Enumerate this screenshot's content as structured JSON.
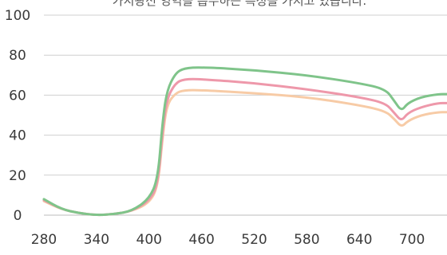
{
  "caption": "가시광선 영역을 흡수하는 특성을 가지고 있습니다.",
  "chart_data": {
    "type": "line",
    "title": "",
    "xlabel": "",
    "ylabel": "",
    "xlim": [
      280,
      740
    ],
    "ylim": [
      0,
      100
    ],
    "x_ticks": [
      280,
      340,
      400,
      460,
      520,
      580,
      640,
      700
    ],
    "y_ticks": [
      0,
      20,
      40,
      60,
      80,
      100
    ],
    "grid": "horizontal",
    "legend": "none",
    "series": [
      {
        "color": "#7fc48a",
        "points": [
          [
            280,
            8
          ],
          [
            300,
            3
          ],
          [
            320,
            1
          ],
          [
            340,
            0
          ],
          [
            360,
            0.5
          ],
          [
            380,
            2
          ],
          [
            400,
            8
          ],
          [
            410,
            18
          ],
          [
            415,
            45
          ],
          [
            420,
            62
          ],
          [
            430,
            71
          ],
          [
            440,
            73.5
          ],
          [
            460,
            74
          ],
          [
            520,
            72.5
          ],
          [
            580,
            70
          ],
          [
            640,
            66
          ],
          [
            670,
            63
          ],
          [
            680,
            57
          ],
          [
            688,
            52
          ],
          [
            695,
            56
          ],
          [
            710,
            59
          ],
          [
            730,
            60.5
          ],
          [
            740,
            60.5
          ]
        ]
      },
      {
        "color": "#ee98aa",
        "points": [
          [
            280,
            7.5
          ],
          [
            300,
            3
          ],
          [
            320,
            1
          ],
          [
            340,
            0
          ],
          [
            360,
            0.5
          ],
          [
            380,
            2
          ],
          [
            400,
            7
          ],
          [
            410,
            15
          ],
          [
            415,
            40
          ],
          [
            420,
            58
          ],
          [
            430,
            66
          ],
          [
            440,
            68
          ],
          [
            460,
            68
          ],
          [
            520,
            66
          ],
          [
            580,
            63
          ],
          [
            640,
            59
          ],
          [
            670,
            56
          ],
          [
            680,
            51
          ],
          [
            688,
            47
          ],
          [
            695,
            51
          ],
          [
            710,
            54
          ],
          [
            730,
            56
          ],
          [
            740,
            56
          ]
        ]
      },
      {
        "color": "#f7cba6",
        "points": [
          [
            280,
            7
          ],
          [
            300,
            3
          ],
          [
            320,
            1
          ],
          [
            340,
            0
          ],
          [
            360,
            0.5
          ],
          [
            380,
            2
          ],
          [
            400,
            6
          ],
          [
            410,
            14
          ],
          [
            415,
            37
          ],
          [
            420,
            55
          ],
          [
            430,
            61
          ],
          [
            440,
            62.5
          ],
          [
            460,
            62.5
          ],
          [
            520,
            61
          ],
          [
            580,
            59
          ],
          [
            640,
            55
          ],
          [
            670,
            52
          ],
          [
            680,
            48
          ],
          [
            688,
            44
          ],
          [
            695,
            47
          ],
          [
            710,
            50
          ],
          [
            730,
            51.5
          ],
          [
            740,
            51.5
          ]
        ]
      }
    ]
  }
}
